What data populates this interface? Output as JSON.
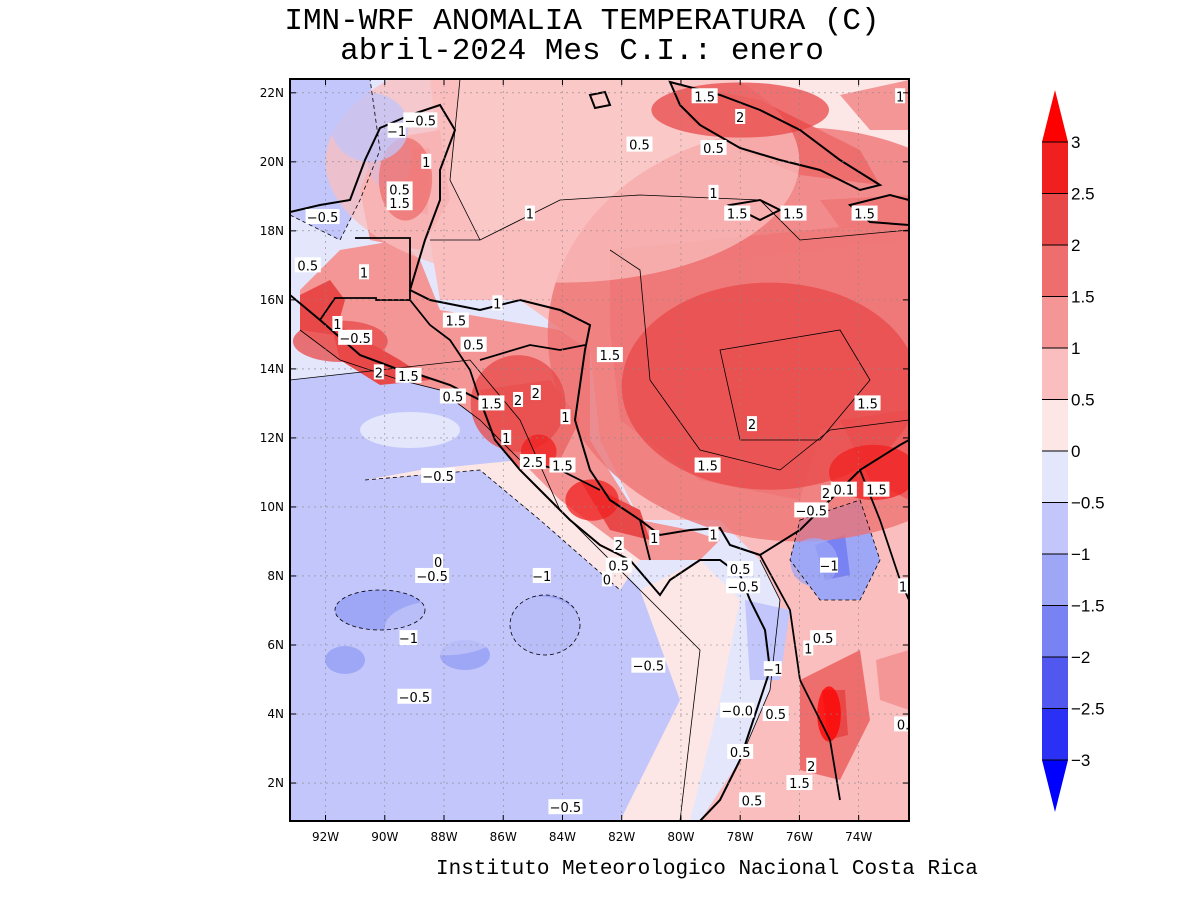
{
  "title": {
    "line1": "IMN-WRF  ANOMALIA TEMPERATURA (C)",
    "line2": "abril-2024 Mes C.I.: enero"
  },
  "credit": "Instituto Meteorologico Nacional Costa Rica",
  "axes": {
    "lon_range": [
      -93.2,
      -72.3
    ],
    "lat_range": [
      0.9,
      22.4
    ],
    "x_ticks": [
      {
        "lon": -92,
        "label": "92W"
      },
      {
        "lon": -90,
        "label": "90W"
      },
      {
        "lon": -88,
        "label": "88W"
      },
      {
        "lon": -86,
        "label": "86W"
      },
      {
        "lon": -84,
        "label": "84W"
      },
      {
        "lon": -82,
        "label": "82W"
      },
      {
        "lon": -80,
        "label": "80W"
      },
      {
        "lon": -78,
        "label": "78W"
      },
      {
        "lon": -76,
        "label": "76W"
      },
      {
        "lon": -74,
        "label": "74W"
      }
    ],
    "y_ticks": [
      {
        "lat": 22,
        "label": "22N"
      },
      {
        "lat": 20,
        "label": "20N"
      },
      {
        "lat": 18,
        "label": "18N"
      },
      {
        "lat": 16,
        "label": "16N"
      },
      {
        "lat": 14,
        "label": "14N"
      },
      {
        "lat": 12,
        "label": "12N"
      },
      {
        "lat": 10,
        "label": "10N"
      },
      {
        "lat": 8,
        "label": "8N"
      },
      {
        "lat": 6,
        "label": "6N"
      },
      {
        "lat": 4,
        "label": "4N"
      },
      {
        "lat": 2,
        "label": "2N"
      }
    ]
  },
  "colorbar": {
    "levels": [
      {
        "value": 3,
        "label": "3"
      },
      {
        "value": 2.5,
        "label": "2.5"
      },
      {
        "value": 2,
        "label": "2"
      },
      {
        "value": 1.5,
        "label": "1.5"
      },
      {
        "value": 1,
        "label": "1"
      },
      {
        "value": 0.5,
        "label": "0.5"
      },
      {
        "value": 0,
        "label": "0"
      },
      {
        "value": -0.5,
        "label": "−0.5"
      },
      {
        "value": -1,
        "label": "−1"
      },
      {
        "value": -1.5,
        "label": "−1.5"
      },
      {
        "value": -2,
        "label": "−2"
      },
      {
        "value": -2.5,
        "label": "−2.5"
      },
      {
        "value": -3,
        "label": "−3"
      }
    ],
    "colors": {
      "over": "#ff0000",
      "2.5_3": "#f02020",
      "2_2.5": "#e84848",
      "1.5_2": "#ee6e6e",
      "1_1.5": "#f49696",
      "0.5_1": "#fabebe",
      "0_0.5": "#fde6e6",
      "-0.5_0": "#e4e6fc",
      "-1_-0.5": "#c2c6fa",
      "-1.5_-1": "#9ea6f6",
      "-2_-1.5": "#7882f2",
      "-2.5_-2": "#5058f0",
      "-3_-2.5": "#2a30f4",
      "under": "#0000ff"
    }
  },
  "contour_labels": [
    {
      "text": "1.5",
      "lon": -79.2,
      "lat": 21.9
    },
    {
      "text": "1",
      "lon": -72.6,
      "lat": 21.9
    },
    {
      "text": "2",
      "lon": -78.0,
      "lat": 21.3
    },
    {
      "text": "−0.5",
      "lon": -88.8,
      "lat": 21.2
    },
    {
      "text": "−1",
      "lon": -89.6,
      "lat": 20.9
    },
    {
      "text": "0.5",
      "lon": -81.4,
      "lat": 20.5
    },
    {
      "text": "0.5",
      "lon": -78.9,
      "lat": 20.4
    },
    {
      "text": "1",
      "lon": -88.6,
      "lat": 20.0
    },
    {
      "text": "0.5",
      "lon": -89.5,
      "lat": 19.2
    },
    {
      "text": "1",
      "lon": -78.9,
      "lat": 19.1
    },
    {
      "text": "1.5",
      "lon": -89.5,
      "lat": 18.8
    },
    {
      "text": "−0.5",
      "lon": -92.1,
      "lat": 18.4
    },
    {
      "text": "1",
      "lon": -85.1,
      "lat": 18.5
    },
    {
      "text": "1.5",
      "lon": -78.1,
      "lat": 18.5
    },
    {
      "text": "1.5",
      "lon": -76.2,
      "lat": 18.5
    },
    {
      "text": "1.5",
      "lon": -73.8,
      "lat": 18.5
    },
    {
      "text": "0.5",
      "lon": -92.6,
      "lat": 17.0
    },
    {
      "text": "1",
      "lon": -90.7,
      "lat": 16.8
    },
    {
      "text": "1",
      "lon": -86.2,
      "lat": 15.9
    },
    {
      "text": "1.5",
      "lon": -87.6,
      "lat": 15.4
    },
    {
      "text": "1",
      "lon": -91.6,
      "lat": 15.3
    },
    {
      "text": "−0.5",
      "lon": -91.0,
      "lat": 14.9
    },
    {
      "text": "0.5",
      "lon": -87.0,
      "lat": 14.7
    },
    {
      "text": "1.5",
      "lon": -82.4,
      "lat": 14.4
    },
    {
      "text": "2",
      "lon": -90.2,
      "lat": 13.9
    },
    {
      "text": "1.5",
      "lon": -89.2,
      "lat": 13.8
    },
    {
      "text": "0.5",
      "lon": -87.7,
      "lat": 13.2
    },
    {
      "text": "1.5",
      "lon": -86.4,
      "lat": 13.0
    },
    {
      "text": "2",
      "lon": -85.5,
      "lat": 13.1
    },
    {
      "text": "2",
      "lon": -84.9,
      "lat": 13.3
    },
    {
      "text": "1.5",
      "lon": -73.7,
      "lat": 13.0
    },
    {
      "text": "1",
      "lon": -83.9,
      "lat": 12.6
    },
    {
      "text": "2",
      "lon": -77.6,
      "lat": 12.4
    },
    {
      "text": "1",
      "lon": -85.9,
      "lat": 12.0
    },
    {
      "text": "−0.5",
      "lon": -88.2,
      "lat": 10.9
    },
    {
      "text": "2.5",
      "lon": -85.0,
      "lat": 11.3
    },
    {
      "text": "1.5",
      "lon": -84.0,
      "lat": 11.2
    },
    {
      "text": "1.5",
      "lon": -79.1,
      "lat": 11.2
    },
    {
      "text": "2",
      "lon": -75.1,
      "lat": 10.4
    },
    {
      "text": "0.1",
      "lon": -74.5,
      "lat": 10.5
    },
    {
      "text": "1.5",
      "lon": -73.4,
      "lat": 10.5
    },
    {
      "text": "−0.5",
      "lon": -75.6,
      "lat": 9.9
    },
    {
      "text": "1",
      "lon": -80.9,
      "lat": 9.1
    },
    {
      "text": "1",
      "lon": -78.9,
      "lat": 9.2
    },
    {
      "text": "2",
      "lon": -82.1,
      "lat": 8.9
    },
    {
      "text": "0",
      "lon": -88.2,
      "lat": 8.4
    },
    {
      "text": "−1",
      "lon": -75.0,
      "lat": 8.3
    },
    {
      "text": "−0.5",
      "lon": -88.4,
      "lat": 8.0
    },
    {
      "text": "−1",
      "lon": -84.7,
      "lat": 8.0
    },
    {
      "text": "0.5",
      "lon": -82.1,
      "lat": 8.3
    },
    {
      "text": "0.5",
      "lon": -78.0,
      "lat": 8.2
    },
    {
      "text": "0",
      "lon": -82.5,
      "lat": 7.9
    },
    {
      "text": "−0.5",
      "lon": -77.9,
      "lat": 7.7
    },
    {
      "text": "1",
      "lon": -72.5,
      "lat": 7.7
    },
    {
      "text": "−1",
      "lon": -89.2,
      "lat": 6.2
    },
    {
      "text": "0.5",
      "lon": -75.2,
      "lat": 6.2
    },
    {
      "text": "1",
      "lon": -75.7,
      "lat": 5.9
    },
    {
      "text": "−0.5",
      "lon": -81.1,
      "lat": 5.4
    },
    {
      "text": "−1",
      "lon": -76.9,
      "lat": 5.3
    },
    {
      "text": "−0.5",
      "lon": -89.0,
      "lat": 4.5
    },
    {
      "text": "−0.0",
      "lon": -78.1,
      "lat": 4.1
    },
    {
      "text": "0.5",
      "lon": -76.8,
      "lat": 4.0
    },
    {
      "text": "0.",
      "lon": -72.5,
      "lat": 3.7
    },
    {
      "text": "0.5",
      "lon": -78.0,
      "lat": 2.9
    },
    {
      "text": "2",
      "lon": -75.6,
      "lat": 2.5
    },
    {
      "text": "1.5",
      "lon": -76.0,
      "lat": 2.0
    },
    {
      "text": "−0.5",
      "lon": -83.9,
      "lat": 1.3
    },
    {
      "text": "0.5",
      "lon": -77.6,
      "lat": 1.5
    }
  ],
  "field_blobs": [
    {
      "name": "caribbean-warm-core",
      "lon": -76.0,
      "lat": 15.0,
      "rlon": 8.5,
      "rlat": 6.0,
      "anomaly": 1.5
    },
    {
      "name": "caribbean-warm-inner",
      "lon": -77.0,
      "lat": 13.5,
      "rlon": 5.0,
      "rlat": 3.0,
      "anomaly": 2.0
    },
    {
      "name": "gulf-of-mexico",
      "lon": -84.0,
      "lat": 20.0,
      "rlon": 8.0,
      "rlat": 3.5,
      "anomaly": 0.5
    },
    {
      "name": "cuba",
      "lon": -78.0,
      "lat": 21.5,
      "rlon": 3.0,
      "rlat": 0.8,
      "anomaly": 2.0
    },
    {
      "name": "honduras-nicaragua",
      "lon": -85.5,
      "lat": 13.0,
      "rlon": 1.6,
      "rlat": 1.4,
      "anomaly": 2.0
    },
    {
      "name": "nicaragua-south",
      "lon": -84.8,
      "lat": 11.6,
      "rlon": 0.6,
      "rlat": 0.5,
      "anomaly": 2.5
    },
    {
      "name": "costa-rica-caribbean",
      "lon": -83.0,
      "lat": 10.2,
      "rlon": 0.9,
      "rlat": 0.6,
      "anomaly": 2.5
    },
    {
      "name": "guatemala-pacific",
      "lon": -91.5,
      "lat": 14.8,
      "rlon": 1.6,
      "rlat": 0.6,
      "anomaly": 2.0
    },
    {
      "name": "yucatan",
      "lon": -89.3,
      "lat": 19.5,
      "rlon": 0.9,
      "rlat": 1.2,
      "anomaly": 1.5
    },
    {
      "name": "colombia-north",
      "lon": -73.5,
      "lat": 11.0,
      "rlon": 1.5,
      "rlat": 0.8,
      "anomaly": 2.5
    },
    {
      "name": "colombia-andes",
      "lon": -75.0,
      "lat": 4.0,
      "rlon": 0.4,
      "rlat": 0.8,
      "anomaly": 3.0
    },
    {
      "name": "colombia-cold",
      "lon": -75.5,
      "lat": 8.4,
      "rlon": 0.8,
      "rlat": 0.7,
      "anomaly": -1.5
    },
    {
      "name": "pacific-cold-1",
      "lon": -88.0,
      "lat": 6.5,
      "rlon": 2.0,
      "rlat": 0.8,
      "anomaly": -1.0
    },
    {
      "name": "pacific-cold-2",
      "lon": -84.7,
      "lat": 6.4,
      "rlon": 1.4,
      "rlat": 1.0,
      "anomaly": -1.0
    },
    {
      "name": "pacific-cold-3",
      "lon": -89.6,
      "lat": 5.0,
      "rlon": 1.0,
      "rlat": 1.0,
      "anomaly": -1.0
    },
    {
      "name": "gulf-cold",
      "lon": -90.5,
      "lat": 21.0,
      "rlon": 1.3,
      "rlat": 1.0,
      "anomaly": -1.0
    }
  ]
}
